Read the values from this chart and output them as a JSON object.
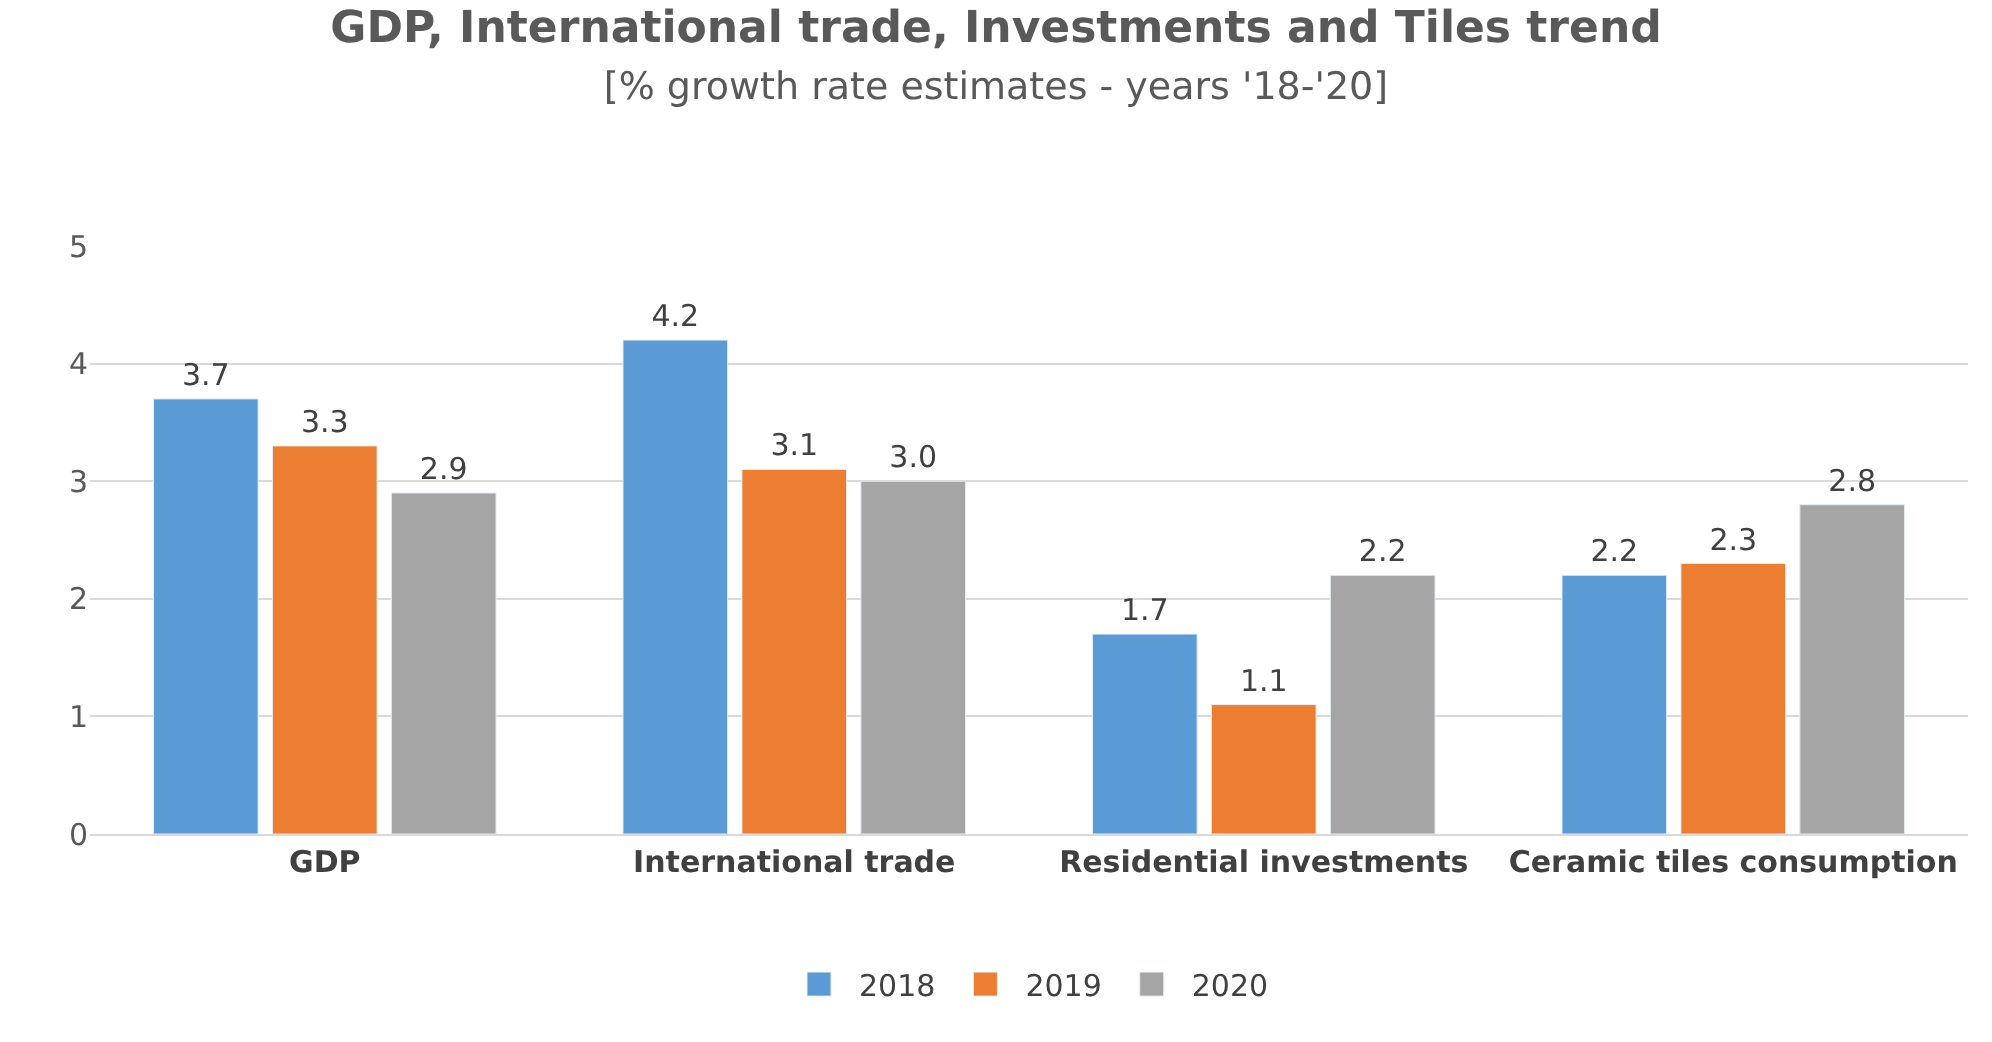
{
  "chart_data": {
    "type": "bar",
    "title": "GDP, International trade, Investments and Tiles trend",
    "subtitle": "[% growth rate estimates - years '18-'20]",
    "categories": [
      "GDP",
      "International trade",
      "Residential investments",
      "Ceramic tiles consumption"
    ],
    "series": [
      {
        "name": "2018",
        "color": "#5b9bd5",
        "values": [
          3.7,
          4.2,
          1.7,
          2.2
        ],
        "value_labels": [
          "3.7",
          "4.2",
          "1.7",
          "2.2"
        ]
      },
      {
        "name": "2019",
        "color": "#ed7d31",
        "values": [
          3.3,
          3.1,
          1.1,
          2.3
        ],
        "value_labels": [
          "3.3",
          "3.1",
          "1.1",
          "2.3"
        ]
      },
      {
        "name": "2020",
        "color": "#a5a5a5",
        "values": [
          2.9,
          3.0,
          2.2,
          2.8
        ],
        "value_labels": [
          "2.9",
          "3.0",
          "2.2",
          "2.8"
        ]
      }
    ],
    "ylim": [
      0,
      5
    ],
    "yticks": [
      0,
      1,
      2,
      3,
      4,
      5
    ],
    "grid": "y",
    "legend": "bottom"
  }
}
